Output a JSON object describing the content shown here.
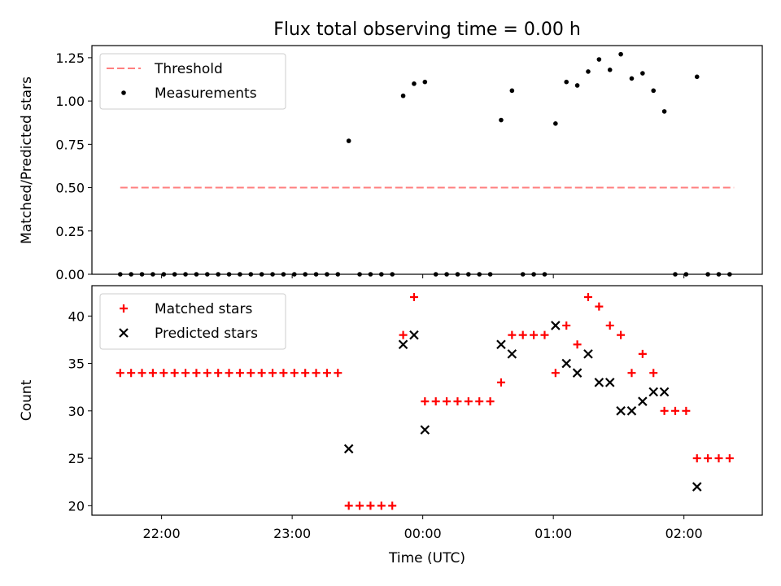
{
  "figure": {
    "title": "Flux total observing time = 0.00 h",
    "xlabel": "Time (UTC)"
  },
  "chart_data": [
    {
      "type": "scatter",
      "ylabel": "Matched/Predicted stars",
      "ylim": [
        0,
        1.32
      ],
      "yticks": [
        0.0,
        0.25,
        0.5,
        0.75,
        1.0,
        1.25
      ],
      "ytick_labels": [
        "0.00",
        "0.25",
        "0.50",
        "0.75",
        "1.00",
        "1.25"
      ],
      "xlim": [
        "21:28",
        "02:36"
      ],
      "xticks": [
        "22:00",
        "23:00",
        "00:00",
        "01:00",
        "02:00"
      ],
      "legend": {
        "placement": "top-left",
        "entries": [
          "Threshold",
          "Measurements"
        ]
      },
      "threshold": {
        "name": "Threshold",
        "value": 0.5,
        "x": [
          "21:41",
          "02:23"
        ],
        "color": "#ff7f7f",
        "style": "dashed"
      },
      "series": [
        {
          "name": "Measurements",
          "color": "#000000",
          "marker": "dot",
          "points": [
            [
              "21:41",
              0
            ],
            [
              "21:46",
              0
            ],
            [
              "21:51",
              0
            ],
            [
              "21:56",
              0
            ],
            [
              "22:01",
              0
            ],
            [
              "22:06",
              0
            ],
            [
              "22:11",
              0
            ],
            [
              "22:16",
              0
            ],
            [
              "22:21",
              0
            ],
            [
              "22:26",
              0
            ],
            [
              "22:31",
              0
            ],
            [
              "22:36",
              0
            ],
            [
              "22:41",
              0
            ],
            [
              "22:46",
              0
            ],
            [
              "22:51",
              0
            ],
            [
              "22:56",
              0
            ],
            [
              "23:01",
              0
            ],
            [
              "23:06",
              0
            ],
            [
              "23:11",
              0
            ],
            [
              "23:16",
              0
            ],
            [
              "23:21",
              0
            ],
            [
              "23:26",
              0.77
            ],
            [
              "23:31",
              0
            ],
            [
              "23:36",
              0
            ],
            [
              "23:41",
              0
            ],
            [
              "23:46",
              0
            ],
            [
              "23:51",
              1.03
            ],
            [
              "23:56",
              1.1
            ],
            [
              "00:01",
              1.11
            ],
            [
              "00:06",
              0
            ],
            [
              "00:11",
              0
            ],
            [
              "00:16",
              0
            ],
            [
              "00:21",
              0
            ],
            [
              "00:26",
              0
            ],
            [
              "00:31",
              0
            ],
            [
              "00:36",
              0.89
            ],
            [
              "00:41",
              1.06
            ],
            [
              "00:46",
              0
            ],
            [
              "00:51",
              0
            ],
            [
              "00:56",
              0
            ],
            [
              "01:01",
              0.87
            ],
            [
              "01:06",
              1.11
            ],
            [
              "01:11",
              1.09
            ],
            [
              "01:16",
              1.17
            ],
            [
              "01:21",
              1.24
            ],
            [
              "01:26",
              1.18
            ],
            [
              "01:31",
              1.27
            ],
            [
              "01:36",
              1.13
            ],
            [
              "01:41",
              1.16
            ],
            [
              "01:46",
              1.06
            ],
            [
              "01:51",
              0.94
            ],
            [
              "01:56",
              0
            ],
            [
              "02:01",
              0
            ],
            [
              "02:06",
              1.14
            ],
            [
              "02:11",
              0
            ],
            [
              "02:16",
              0
            ],
            [
              "02:21",
              0
            ]
          ]
        }
      ]
    },
    {
      "type": "scatter",
      "ylabel": "Count",
      "ylim": [
        19,
        43.2
      ],
      "yticks": [
        20,
        25,
        30,
        35,
        40
      ],
      "ytick_labels": [
        "20",
        "25",
        "30",
        "35",
        "40"
      ],
      "xlim": [
        "21:28",
        "02:36"
      ],
      "xticks": [
        "22:00",
        "23:00",
        "00:00",
        "01:00",
        "02:00"
      ],
      "xtick_labels": [
        "22:00",
        "23:00",
        "00:00",
        "01:00",
        "02:00"
      ],
      "legend": {
        "placement": "top-left",
        "entries": [
          "Matched stars",
          "Predicted stars"
        ]
      },
      "series": [
        {
          "name": "Matched stars",
          "color": "#ff0000",
          "marker": "plus",
          "points": [
            [
              "21:41",
              34
            ],
            [
              "21:46",
              34
            ],
            [
              "21:51",
              34
            ],
            [
              "21:56",
              34
            ],
            [
              "22:01",
              34
            ],
            [
              "22:06",
              34
            ],
            [
              "22:11",
              34
            ],
            [
              "22:16",
              34
            ],
            [
              "22:21",
              34
            ],
            [
              "22:26",
              34
            ],
            [
              "22:31",
              34
            ],
            [
              "22:36",
              34
            ],
            [
              "22:41",
              34
            ],
            [
              "22:46",
              34
            ],
            [
              "22:51",
              34
            ],
            [
              "22:56",
              34
            ],
            [
              "23:01",
              34
            ],
            [
              "23:06",
              34
            ],
            [
              "23:11",
              34
            ],
            [
              "23:16",
              34
            ],
            [
              "23:21",
              34
            ],
            [
              "23:26",
              20
            ],
            [
              "23:31",
              20
            ],
            [
              "23:36",
              20
            ],
            [
              "23:41",
              20
            ],
            [
              "23:46",
              20
            ],
            [
              "23:51",
              38
            ],
            [
              "23:56",
              42
            ],
            [
              "00:01",
              31
            ],
            [
              "00:06",
              31
            ],
            [
              "00:11",
              31
            ],
            [
              "00:16",
              31
            ],
            [
              "00:21",
              31
            ],
            [
              "00:26",
              31
            ],
            [
              "00:31",
              31
            ],
            [
              "00:36",
              33
            ],
            [
              "00:41",
              38
            ],
            [
              "00:46",
              38
            ],
            [
              "00:51",
              38
            ],
            [
              "00:56",
              38
            ],
            [
              "01:01",
              34
            ],
            [
              "01:06",
              39
            ],
            [
              "01:11",
              37
            ],
            [
              "01:16",
              42
            ],
            [
              "01:21",
              41
            ],
            [
              "01:26",
              39
            ],
            [
              "01:31",
              38
            ],
            [
              "01:36",
              34
            ],
            [
              "01:41",
              36
            ],
            [
              "01:46",
              34
            ],
            [
              "01:51",
              30
            ],
            [
              "01:56",
              30
            ],
            [
              "02:01",
              30
            ],
            [
              "02:06",
              25
            ],
            [
              "02:11",
              25
            ],
            [
              "02:16",
              25
            ],
            [
              "02:21",
              25
            ]
          ]
        },
        {
          "name": "Predicted stars",
          "color": "#000000",
          "marker": "x",
          "points": [
            [
              "23:26",
              26
            ],
            [
              "23:51",
              37
            ],
            [
              "23:56",
              38
            ],
            [
              "00:01",
              28
            ],
            [
              "00:36",
              37
            ],
            [
              "00:41",
              36
            ],
            [
              "01:01",
              39
            ],
            [
              "01:06",
              35
            ],
            [
              "01:11",
              34
            ],
            [
              "01:16",
              36
            ],
            [
              "01:21",
              33
            ],
            [
              "01:26",
              33
            ],
            [
              "01:31",
              30
            ],
            [
              "01:36",
              30
            ],
            [
              "01:41",
              31
            ],
            [
              "01:46",
              32
            ],
            [
              "01:51",
              32
            ],
            [
              "02:06",
              22
            ]
          ]
        }
      ]
    }
  ]
}
